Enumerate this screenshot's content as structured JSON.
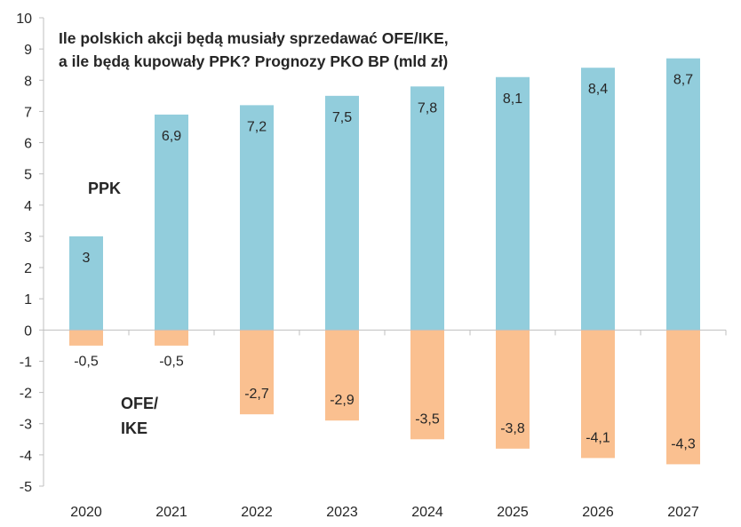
{
  "chart_data": {
    "type": "bar",
    "title_lines": [
      "Ile polskich akcji będą musiały sprzedawać OFE/IKE,",
      "a ile będą kupowały PPK? Prognozy PKO BP (mld zł)"
    ],
    "categories": [
      "2020",
      "2021",
      "2022",
      "2023",
      "2024",
      "2025",
      "2026",
      "2027"
    ],
    "series": [
      {
        "name": "PPK",
        "values": [
          3,
          6.9,
          7.2,
          7.5,
          7.8,
          8.1,
          8.4,
          8.7
        ],
        "labels": [
          "3",
          "6,9",
          "7,2",
          "7,5",
          "7,8",
          "8,1",
          "8,4",
          "8,7"
        ],
        "color": "#92cddc"
      },
      {
        "name": "OFE/ IKE",
        "values": [
          -0.5,
          -0.5,
          -2.7,
          -2.9,
          -3.5,
          -3.8,
          -4.1,
          -4.3
        ],
        "labels": [
          "-0,5",
          "-0,5",
          "-2,7",
          "-2,9",
          "-3,5",
          "-3,8",
          "-4,1",
          "-4,3"
        ],
        "color": "#fac090"
      }
    ],
    "annotations": {
      "ppk": "PPK",
      "ofe_line1": "OFE/",
      "ofe_line2": "IKE"
    },
    "yticks": [
      10,
      9,
      8,
      7,
      6,
      5,
      4,
      3,
      2,
      1,
      0,
      -1,
      -2,
      -3,
      -4,
      -5
    ],
    "ylim": [
      -5,
      10
    ],
    "stacked": "diverging",
    "grid": false,
    "legend": "none"
  }
}
